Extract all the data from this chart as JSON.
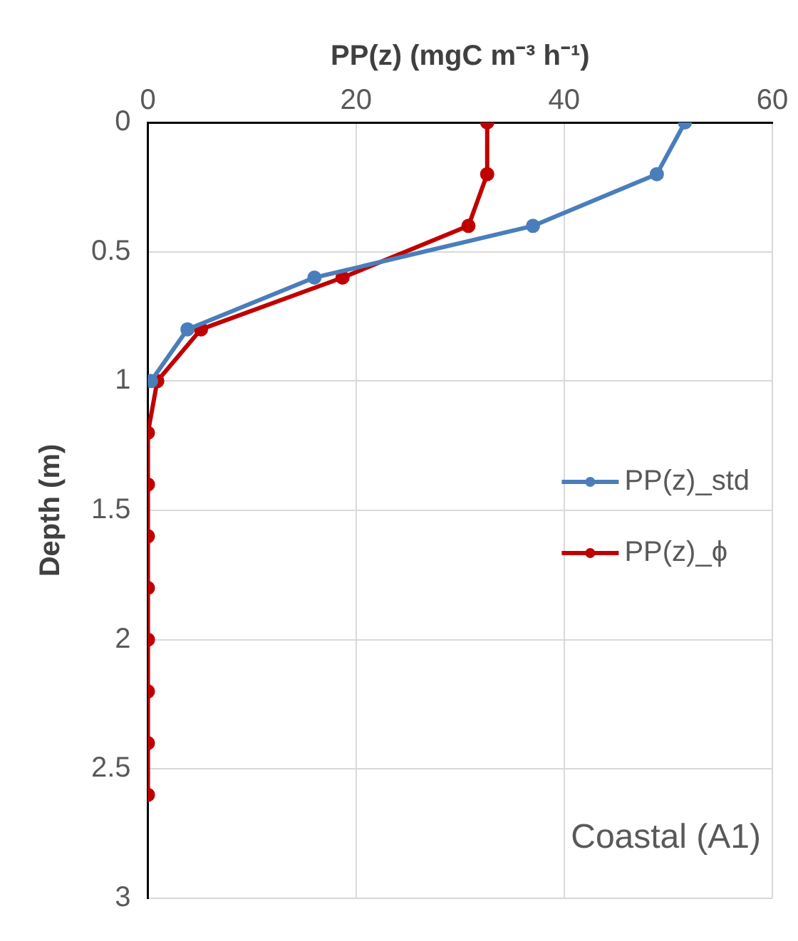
{
  "chart_data": {
    "type": "line",
    "xlabel": "PP(z) (mgC m⁻³ h⁻¹)",
    "ylabel": "Depth (m)",
    "xlim": [
      0,
      60
    ],
    "xticks": [
      0,
      20,
      40,
      60
    ],
    "ylim": [
      3,
      0
    ],
    "yticks": [
      0,
      0.5,
      1,
      1.5,
      2,
      2.5,
      3
    ],
    "series": [
      {
        "name": "PP(z)_std",
        "color": "#4a7ebb",
        "x": [
          51.6,
          48.9,
          37.0,
          16.0,
          3.8,
          0.3
        ],
        "values": [
          0,
          0.2,
          0.4,
          0.6,
          0.8,
          1.0
        ]
      },
      {
        "name": "PP(z)_ϕ",
        "color": "#c00000",
        "x": [
          32.6,
          32.6,
          30.8,
          18.7,
          5.1,
          0.9,
          0,
          0,
          0,
          0,
          0,
          0,
          0,
          0
        ],
        "values": [
          0,
          0.2,
          0.4,
          0.6,
          0.8,
          1.0,
          1.2,
          1.4,
          1.6,
          1.8,
          2.0,
          2.2,
          2.4,
          2.6
        ]
      }
    ],
    "annotations": [
      "Coastal (A1)"
    ],
    "grid": true,
    "legend": "right",
    "marker": "circle",
    "line_style": "solid"
  }
}
